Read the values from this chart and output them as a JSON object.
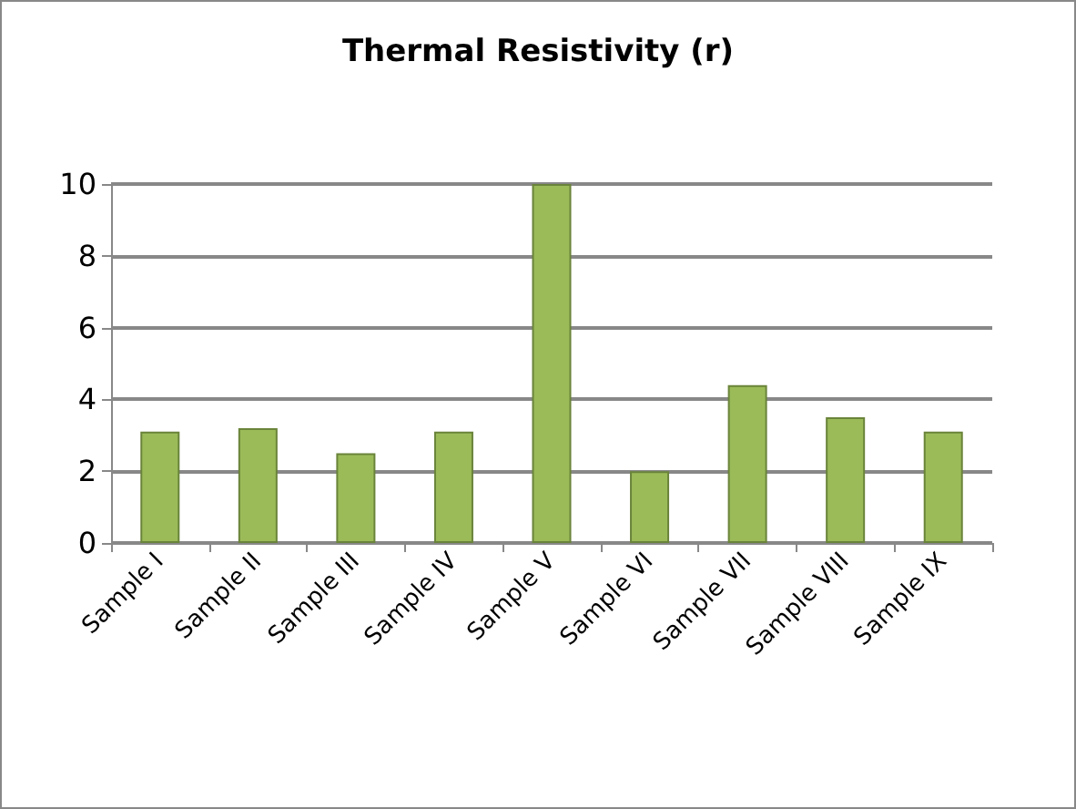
{
  "chart_data": {
    "type": "bar",
    "title": "Thermal Resistivity (r)",
    "categories": [
      "Sample I",
      "Sample II",
      "Sample III",
      "Sample IV",
      "Sample V",
      "Sample VI",
      "Sample VII",
      "Sample VIII",
      "Sample IX"
    ],
    "values": [
      3.1,
      3.2,
      2.5,
      3.1,
      10,
      2.0,
      4.4,
      3.5,
      3.1
    ],
    "color": "#9bbb59",
    "ylim": [
      0,
      10
    ],
    "yticks": [
      0,
      2,
      4,
      6,
      8,
      10
    ],
    "grid": "y"
  }
}
